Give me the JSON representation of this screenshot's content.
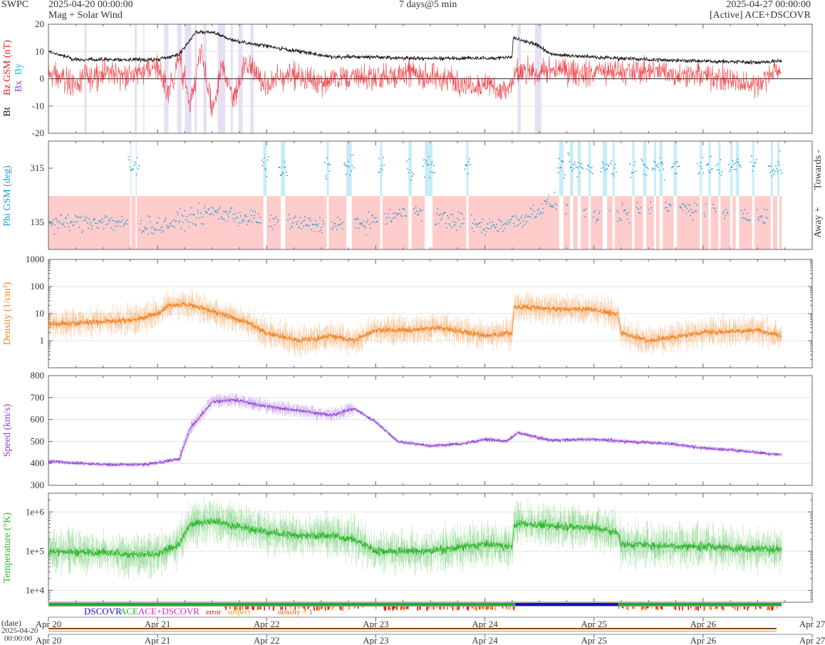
{
  "header": {
    "org": "SWPC",
    "start_time": "2025-04-20 00:00:00",
    "subtitle": "Mag + Solar Wind",
    "span": "7 days@5 min",
    "end_time": "2025-04-27 00:00:00",
    "source": "[Active] ACE+DSCOVR"
  },
  "colors": {
    "bt": "#111111",
    "bz": "#e8141c",
    "by": "#1cb4e0",
    "bx": "#8a3cd0",
    "phi": "#1e9ad6",
    "phi_toward": "#c8ecf7",
    "phi_away": "#ffcccc",
    "density": "#f08020",
    "speed": "#9040d8",
    "temperature": "#2cb42c",
    "dscovr": "#1010d0",
    "ace": "#20b020",
    "ace_dscovr": "#e020e0",
    "error": "#e01010",
    "suspect": "#f0a000",
    "density_low": "#f06000"
  },
  "x_axis": {
    "ticks": [
      "Apr 20",
      "Apr 21",
      "Apr 22",
      "Apr 23",
      "Apr 24",
      "Apr 25",
      "Apr 26",
      "Apr 27"
    ],
    "range_days": [
      0,
      7
    ],
    "date_label": "(date)",
    "start_date": "2025-04-20",
    "start_clock": "00:00:00"
  },
  "panels": {
    "mag": {
      "label_bt": "Bt",
      "label_bz": "Bz GSM (nT)",
      "label_bx": "Bx",
      "label_by": "By",
      "ylim": [
        -20,
        20
      ],
      "yticks": [
        "20",
        "10",
        "0",
        "-10",
        "-20"
      ]
    },
    "phi": {
      "label": "Phi GSM (deg)",
      "ylim": [
        45,
        405
      ],
      "yticks": [
        "315",
        "135"
      ],
      "right_top": "Towards -",
      "right_bottom": "Away +"
    },
    "density": {
      "label": "Density (1/cm³)",
      "ylim": [
        0.1,
        1000
      ],
      "yticks": [
        "1000",
        "100",
        "10",
        "1"
      ]
    },
    "speed": {
      "label": "Speed (km/s)",
      "ylim": [
        300,
        800
      ],
      "yticks": [
        "800",
        "700",
        "600",
        "500",
        "400",
        "300"
      ]
    },
    "temperature": {
      "label": "Temperature (°K)",
      "ylim": [
        5000,
        3000000
      ],
      "yticks": [
        "1e+6",
        "1e+5",
        "1e+4"
      ]
    }
  },
  "legend": {
    "dscovr": "DSCOVR",
    "ace": "ACE",
    "ace_dscovr": "ACE+DSCOVR",
    "error": "error",
    "suspect": "suspect",
    "density_low": "density < 1"
  },
  "chart_data": [
    {
      "type": "line",
      "title": "Mag",
      "ylabel": "Bt / Bz GSM (nT)",
      "ylim": [
        -20,
        20
      ],
      "x_units": "days since 2025-04-20",
      "series": [
        {
          "name": "Bt",
          "x": [
            0,
            0.25,
            0.5,
            0.75,
            1.0,
            1.2,
            1.35,
            1.5,
            1.7,
            2.0,
            2.3,
            2.6,
            3.0,
            3.3,
            3.6,
            4.0,
            4.25,
            4.26,
            4.5,
            4.6,
            5.0,
            5.5,
            6.0,
            6.5,
            6.7
          ],
          "y": [
            10,
            7,
            7,
            7,
            7,
            9,
            17,
            17,
            14,
            12,
            10,
            8,
            8,
            7.5,
            7.5,
            7.5,
            8,
            15,
            12,
            9,
            8,
            7,
            6.5,
            6,
            6.5
          ]
        },
        {
          "name": "Bz GSM",
          "x": [
            0,
            0.25,
            0.5,
            0.75,
            1.0,
            1.1,
            1.2,
            1.3,
            1.4,
            1.5,
            1.6,
            1.7,
            1.8,
            2.0,
            2.2,
            2.5,
            2.8,
            3.0,
            3.3,
            3.6,
            4.0,
            4.2,
            4.3,
            4.5,
            5.0,
            5.5,
            6.0,
            6.5,
            6.7
          ],
          "y": [
            2,
            -2,
            3,
            1,
            5,
            -6,
            8,
            -10,
            10,
            -12,
            5,
            -8,
            6,
            -3,
            2,
            -1,
            1,
            0,
            2,
            0,
            -2,
            -5,
            2,
            3,
            2,
            3,
            1,
            -2,
            4
          ]
        }
      ]
    },
    {
      "type": "scatter",
      "title": "Phi",
      "ylabel": "Phi GSM (deg)",
      "ylim": [
        45,
        405
      ],
      "x_units": "days since 2025-04-20",
      "series": [
        {
          "name": "Phi GSM",
          "x": [
            0,
            0.5,
            1.0,
            1.5,
            1.8,
            2.0,
            2.3,
            2.6,
            3.0,
            3.3,
            3.6,
            4.0,
            4.3,
            4.6,
            5.0,
            5.3,
            5.6,
            6.0,
            6.3,
            6.6
          ],
          "y": [
            130,
            140,
            120,
            170,
            150,
            145,
            130,
            120,
            140,
            170,
            150,
            120,
            140,
            200,
            160,
            170,
            190,
            180,
            160,
            150
          ]
        }
      ]
    },
    {
      "type": "line",
      "title": "Density",
      "ylabel": "Density (1/cm³)",
      "ylim": [
        0.1,
        1000
      ],
      "yscale": "log",
      "x_units": "days since 2025-04-20",
      "series": [
        {
          "name": "Density",
          "x": [
            0,
            0.5,
            0.8,
            1.0,
            1.1,
            1.3,
            1.5,
            1.8,
            2.0,
            2.3,
            2.6,
            2.8,
            3.0,
            3.3,
            3.6,
            4.0,
            4.25,
            4.27,
            4.6,
            5.0,
            5.22,
            5.25,
            5.5,
            6.0,
            6.5,
            6.7
          ],
          "y": [
            4,
            5,
            6,
            10,
            20,
            22,
            12,
            5,
            2,
            1,
            1.5,
            1,
            2.5,
            2.5,
            3,
            1.5,
            2,
            18,
            15,
            14,
            9,
            2,
            1,
            2,
            2.5,
            1.5
          ]
        }
      ]
    },
    {
      "type": "line",
      "title": "Speed",
      "ylabel": "Speed (km/s)",
      "ylim": [
        300,
        800
      ],
      "x_units": "days since 2025-04-20",
      "series": [
        {
          "name": "Speed",
          "x": [
            0,
            0.5,
            0.9,
            1.2,
            1.3,
            1.5,
            1.7,
            2.0,
            2.3,
            2.6,
            2.8,
            3.0,
            3.2,
            3.5,
            3.8,
            4.0,
            4.2,
            4.3,
            4.6,
            5.0,
            5.3,
            5.7,
            6.0,
            6.3,
            6.7
          ],
          "y": [
            410,
            395,
            395,
            420,
            560,
            680,
            690,
            660,
            640,
            620,
            650,
            590,
            500,
            480,
            490,
            510,
            500,
            540,
            505,
            510,
            500,
            490,
            470,
            460,
            440
          ]
        }
      ]
    },
    {
      "type": "line",
      "title": "Temperature",
      "ylabel": "Temperature (°K)",
      "ylim": [
        5000,
        3000000
      ],
      "yscale": "log",
      "x_units": "days since 2025-04-20",
      "series": [
        {
          "name": "Temperature",
          "x": [
            0,
            0.5,
            1.0,
            1.2,
            1.3,
            1.5,
            1.8,
            2.0,
            2.3,
            2.6,
            2.8,
            3.0,
            3.5,
            4.0,
            4.25,
            4.27,
            4.6,
            5.0,
            5.22,
            5.25,
            6.0,
            6.7
          ],
          "y": [
            100000,
            90000,
            80000,
            150000,
            500000,
            600000,
            400000,
            300000,
            250000,
            250000,
            200000,
            100000,
            100000,
            150000,
            130000,
            500000,
            450000,
            400000,
            300000,
            150000,
            130000,
            110000
          ]
        }
      ]
    }
  ]
}
